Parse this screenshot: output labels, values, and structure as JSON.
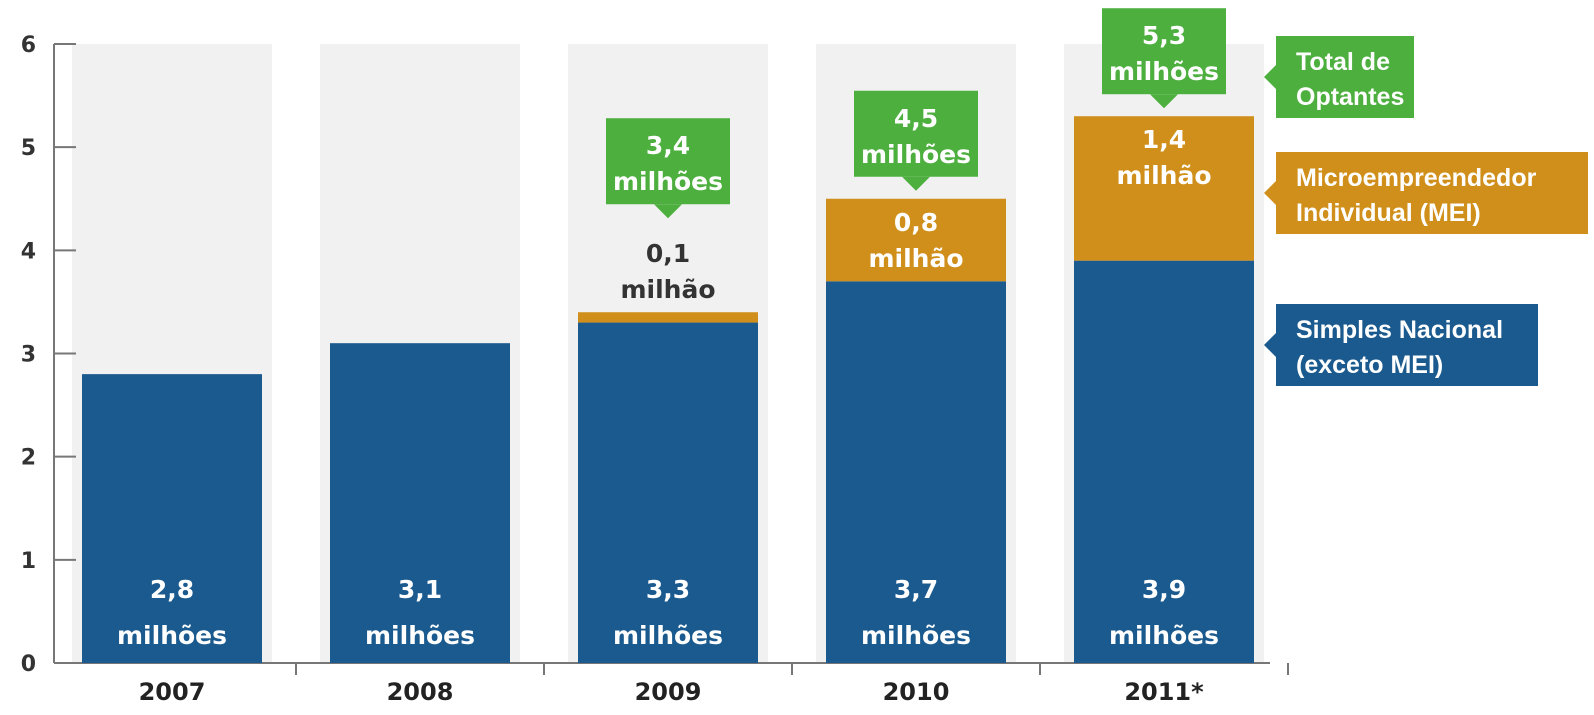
{
  "chart_data": {
    "type": "bar",
    "stacked": true,
    "categories": [
      "2007",
      "2008",
      "2009",
      "2010",
      "2011*"
    ],
    "ylim": [
      0,
      6
    ],
    "yticks": [
      "0",
      "1",
      "2",
      "3",
      "4",
      "5",
      "6"
    ],
    "series": [
      {
        "name": "Simples Nacional (exceto MEI)",
        "legend_lines": [
          "Simples Nacional",
          "(exceto MEI)"
        ],
        "color": "#1b5a8e",
        "values": [
          2.8,
          3.1,
          3.3,
          3.7,
          3.9
        ],
        "labels": [
          [
            "2,8",
            "milhões"
          ],
          [
            "3,1",
            "milhões"
          ],
          [
            "3,3",
            "milhões"
          ],
          [
            "3,7",
            "milhões"
          ],
          [
            "3,9",
            "milhões"
          ]
        ]
      },
      {
        "name": "Microempreendedor Individual (MEI)",
        "legend_lines": [
          "Microempreendedor",
          "Individual (MEI)"
        ],
        "color": "#d08f1a",
        "values": [
          0,
          0,
          0.1,
          0.8,
          1.4
        ],
        "labels": [
          null,
          null,
          [
            "0,1",
            "milhão"
          ],
          [
            "0,8",
            "milhão"
          ],
          [
            "1,4",
            "milhão"
          ]
        ]
      }
    ],
    "totals": {
      "name": "Total de Optantes",
      "legend_lines": [
        "Total de",
        "Optantes"
      ],
      "color": "#4caf3e",
      "values": [
        null,
        null,
        3.4,
        4.5,
        5.3
      ],
      "labels": [
        null,
        null,
        [
          "3,4",
          "milhões"
        ],
        [
          "4,5",
          "milhões"
        ],
        [
          "5,3",
          "milhões"
        ]
      ]
    },
    "background_band_color": "#f1f1f1",
    "axis_color": "#777777"
  }
}
